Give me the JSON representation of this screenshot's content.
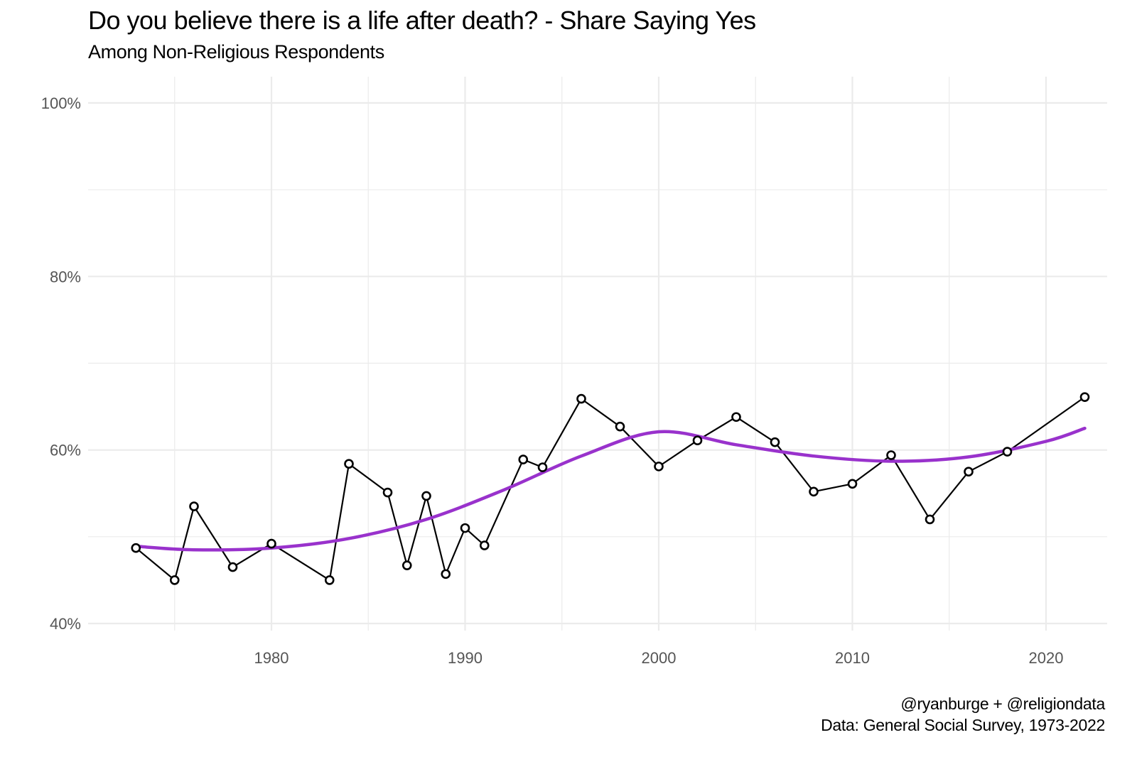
{
  "header": {
    "title": "Do you believe there is a life after death? - Share Saying Yes",
    "subtitle": "Among Non-Religious Respondents"
  },
  "caption": {
    "line1": "@ryanburge + @religiondata",
    "line2": "Data: General Social Survey, 1973-2022"
  },
  "colors": {
    "line": "#000000",
    "point_fill": "#ffffff",
    "smooth": "#9932CC",
    "grid": "#ebebeb"
  },
  "chart_data": {
    "type": "line",
    "title": "Do you believe there is a life after death? - Share Saying Yes",
    "subtitle": "Among Non-Religious Respondents",
    "xlabel": "",
    "ylabel": "",
    "xlim": [
      1970.5,
      2024.5
    ],
    "ylim": [
      37,
      102
    ],
    "x_ticks": [
      1980,
      1990,
      2000,
      2010,
      2020
    ],
    "y_ticks": [
      0.4,
      0.6,
      0.8,
      1.0
    ],
    "y_tick_labels": [
      "40%",
      "60%",
      "80%",
      "100%"
    ],
    "grid": true,
    "series": [
      {
        "kind": "observed",
        "x": [
          1973,
          1975,
          1976,
          1978,
          1980,
          1983,
          1984,
          1986,
          1987,
          1988,
          1989,
          1990,
          1991,
          1993,
          1994,
          1996,
          1998,
          2000,
          2002,
          2004,
          2006,
          2008,
          2010,
          2012,
          2014,
          2016,
          2018,
          2022
        ],
        "y": [
          48.7,
          45.0,
          53.5,
          46.5,
          49.2,
          45.0,
          58.4,
          55.1,
          46.7,
          54.7,
          45.7,
          51.0,
          49.0,
          58.9,
          58.0,
          65.9,
          62.7,
          58.1,
          61.1,
          63.8,
          60.9,
          55.2,
          56.1,
          59.4,
          52.0,
          57.5,
          59.8,
          66.1
        ]
      },
      {
        "kind": "smoothed",
        "x": [
          1973,
          1976,
          1980,
          1984,
          1988,
          1992,
          1996,
          2000,
          2004,
          2008,
          2012,
          2016,
          2020,
          2022
        ],
        "y": [
          48.9,
          48.5,
          48.7,
          49.8,
          52.0,
          55.4,
          59.3,
          62.1,
          60.6,
          59.3,
          58.7,
          59.2,
          61.0,
          62.5
        ]
      }
    ]
  }
}
